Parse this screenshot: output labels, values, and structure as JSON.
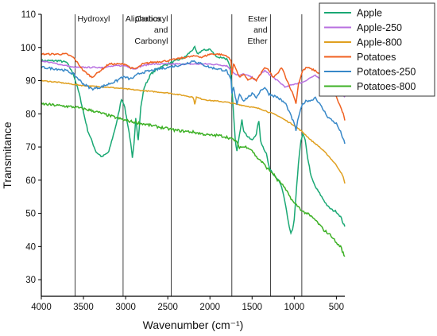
{
  "chart_data": {
    "type": "line",
    "xlabel": "Wavenumber (cm⁻¹)",
    "ylabel": "Transmitance",
    "xlim": [
      4000,
      400
    ],
    "ylim": [
      25,
      110
    ],
    "xticks": [
      4000,
      3500,
      3000,
      2500,
      2000,
      1500,
      1000,
      500
    ],
    "yticks": [
      30,
      40,
      50,
      60,
      70,
      80,
      90,
      100,
      110
    ],
    "legend_position": "top-right",
    "annotations": [
      {
        "text": "Hydroxyl",
        "lines": [
          "Hydroxyl"
        ],
        "x": 3600
      },
      {
        "text": "Aliphatics",
        "lines": [
          "Aliphatics"
        ],
        "x": 3030
      },
      {
        "text": "Carboxyl and Carbonyl",
        "lines": [
          "Carboxyl",
          "and",
          "Carbonyl"
        ],
        "x": 2460
      },
      {
        "text": "Ester and Ether",
        "lines": [
          "Ester",
          "and",
          "Ether"
        ],
        "x": 1280
      }
    ],
    "extra_vlines": [
      1740,
      910
    ],
    "series": [
      {
        "name": "Apple",
        "color": "#1aa874",
        "noise": 0.6,
        "x": [
          4000,
          3800,
          3700,
          3620,
          3550,
          3450,
          3350,
          3280,
          3200,
          3100,
          3050,
          3020,
          2990,
          2950,
          2930,
          2920,
          2900,
          2880,
          2860,
          2850,
          2820,
          2780,
          2700,
          2600,
          2500,
          2400,
          2300,
          2200,
          2180,
          2150,
          2100,
          2000,
          1950,
          1900,
          1850,
          1800,
          1760,
          1740,
          1720,
          1700,
          1680,
          1650,
          1620,
          1600,
          1550,
          1500,
          1450,
          1420,
          1400,
          1370,
          1330,
          1300,
          1250,
          1200,
          1150,
          1100,
          1060,
          1040,
          1020,
          1000,
          980,
          950,
          920,
          900,
          870,
          850,
          820,
          800,
          750,
          700,
          650,
          600,
          550,
          500,
          450,
          420,
          400
        ],
        "y": [
          96,
          96,
          95.5,
          92,
          86,
          75,
          68.5,
          67,
          68.5,
          78,
          84.5,
          83,
          79,
          73,
          69,
          66.5,
          71,
          79,
          74,
          72,
          82,
          88,
          92,
          94,
          95,
          96,
          97,
          99.5,
          100,
          98,
          99,
          99.5,
          98,
          97,
          97,
          96.5,
          94,
          88,
          80,
          72,
          69,
          74,
          78,
          75,
          73,
          72,
          74,
          78,
          72,
          70,
          68,
          64,
          62,
          60.5,
          58,
          52,
          46,
          44,
          45,
          48,
          55,
          65,
          72,
          74,
          72,
          68,
          64,
          61,
          58,
          56,
          54,
          52,
          51,
          50.5,
          49,
          47,
          46
        ]
      },
      {
        "name": "Apple-250",
        "color": "#b870e0",
        "noise": 0.4,
        "x": [
          4000,
          3900,
          3800,
          3700,
          3620,
          3500,
          3400,
          3300,
          3200,
          3100,
          3000,
          2950,
          2900,
          2850,
          2800,
          2700,
          2500,
          2300,
          2100,
          2000,
          1900,
          1800,
          1740,
          1700,
          1650,
          1600,
          1550,
          1500,
          1450,
          1400,
          1350,
          1300,
          1200,
          1100,
          1000,
          900,
          800,
          750,
          700,
          650,
          600,
          550,
          500,
          450,
          420,
          400
        ],
        "y": [
          96,
          95.5,
          95,
          94.5,
          94,
          94,
          94,
          94,
          94.2,
          94.5,
          94.5,
          94,
          93.5,
          94,
          94.5,
          95,
          95,
          95,
          95,
          95,
          94.8,
          94.5,
          93,
          92,
          91.5,
          92,
          91.5,
          91,
          90,
          92,
          93,
          92,
          90,
          88,
          89,
          89.5,
          91,
          91.5,
          90.5,
          89,
          88,
          90,
          89.5,
          87,
          86,
          85
        ]
      },
      {
        "name": "Apple-800",
        "color": "#e0a020",
        "noise": 0.3,
        "x": [
          4000,
          3800,
          3500,
          3200,
          3000,
          2800,
          2500,
          2300,
          2200,
          2180,
          2160,
          2100,
          2000,
          1900,
          1800,
          1700,
          1600,
          1500,
          1400,
          1300,
          1200,
          1100,
          1000,
          900,
          800,
          700,
          600,
          500,
          450,
          420,
          400
        ],
        "y": [
          90,
          89.5,
          88.5,
          88,
          87.5,
          87,
          86.3,
          85.5,
          85,
          83,
          85,
          84.5,
          84,
          83.8,
          83.5,
          83,
          82.5,
          82,
          81.5,
          80.5,
          79.5,
          78,
          76.5,
          74.5,
          72,
          70,
          67.5,
          64.5,
          62.5,
          61,
          59
        ]
      },
      {
        "name": "Potatoes",
        "color": "#f06020",
        "noise": 0.5,
        "x": [
          4000,
          3800,
          3700,
          3620,
          3500,
          3400,
          3300,
          3200,
          3100,
          3000,
          2950,
          2900,
          2850,
          2800,
          2700,
          2500,
          2300,
          2150,
          2100,
          2000,
          1900,
          1800,
          1750,
          1740,
          1720,
          1680,
          1650,
          1600,
          1550,
          1500,
          1450,
          1400,
          1350,
          1300,
          1250,
          1200,
          1150,
          1100,
          1050,
          1000,
          980,
          950,
          900,
          850,
          800,
          750,
          700,
          650,
          600,
          550,
          500,
          450,
          420,
          400
        ],
        "y": [
          98,
          98,
          98,
          97,
          93,
          91,
          93,
          95,
          95,
          95,
          94,
          93.5,
          94,
          95,
          95.5,
          96,
          97,
          97.5,
          97,
          98,
          98,
          97.5,
          96,
          92,
          95,
          93,
          91,
          92,
          90,
          91,
          90,
          92,
          94,
          93,
          91,
          92,
          94,
          91,
          88,
          85,
          83,
          89,
          93,
          94,
          93.5,
          93,
          92,
          91,
          90,
          88,
          85,
          82,
          80,
          78
        ]
      },
      {
        "name": "Potatoes-250",
        "color": "#3888c8",
        "noise": 0.7,
        "x": [
          4000,
          3800,
          3700,
          3620,
          3500,
          3400,
          3300,
          3200,
          3100,
          3050,
          3000,
          2950,
          2900,
          2850,
          2800,
          2700,
          2500,
          2300,
          2200,
          2100,
          2000,
          1900,
          1800,
          1750,
          1740,
          1720,
          1700,
          1680,
          1650,
          1600,
          1550,
          1500,
          1450,
          1400,
          1350,
          1300,
          1200,
          1100,
          1050,
          1000,
          980,
          950,
          900,
          850,
          800,
          750,
          700,
          650,
          600,
          550,
          500,
          450,
          420,
          400
        ],
        "y": [
          94,
          93.5,
          93,
          92,
          89,
          87.5,
          88,
          89,
          90,
          91,
          91,
          90.5,
          91,
          92,
          92.5,
          93,
          94,
          95,
          96,
          95,
          94,
          93.5,
          93,
          90,
          86,
          88,
          85,
          83,
          86,
          84,
          85,
          86,
          85,
          87,
          88,
          86,
          85,
          83,
          80,
          77,
          75,
          79,
          83,
          84,
          84,
          85,
          83,
          81,
          79,
          78,
          77,
          74.5,
          72.5,
          71
        ]
      },
      {
        "name": "Potatoes-800",
        "color": "#3cb024",
        "noise": 0.8,
        "x": [
          4000,
          3800,
          3600,
          3400,
          3200,
          3000,
          2800,
          2600,
          2400,
          2200,
          2100,
          2000,
          1900,
          1800,
          1700,
          1650,
          1600,
          1550,
          1500,
          1450,
          1400,
          1350,
          1300,
          1250,
          1200,
          1150,
          1100,
          1050,
          1000,
          950,
          900,
          850,
          800,
          750,
          700,
          650,
          600,
          550,
          500,
          450,
          420,
          400
        ],
        "y": [
          83,
          82.5,
          82,
          81,
          79.5,
          78,
          77,
          76,
          75,
          74.5,
          74,
          73.5,
          73.5,
          73,
          72,
          70,
          70,
          70,
          69,
          67,
          66,
          64.5,
          63,
          62,
          60,
          59,
          57,
          55,
          53,
          52,
          50.5,
          50,
          49,
          48,
          46.5,
          45,
          44,
          43,
          41,
          40,
          38,
          37
        ]
      }
    ]
  }
}
